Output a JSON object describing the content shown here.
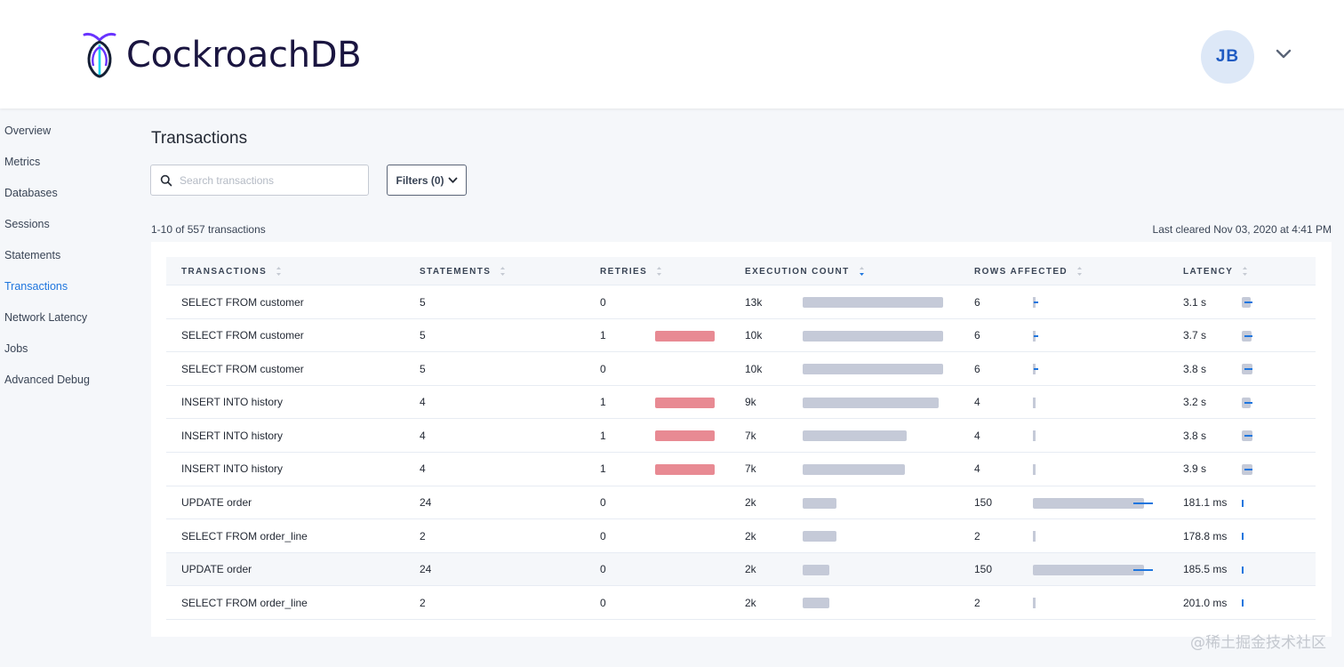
{
  "brand": {
    "name": "CockroachDB",
    "accent": "#1f76de",
    "logo_color": "#6933ff"
  },
  "user": {
    "initials": "JB"
  },
  "sidebar": {
    "items": [
      {
        "label": "Overview",
        "active": false
      },
      {
        "label": "Metrics",
        "active": false
      },
      {
        "label": "Databases",
        "active": false
      },
      {
        "label": "Sessions",
        "active": false
      },
      {
        "label": "Statements",
        "active": false
      },
      {
        "label": "Transactions",
        "active": true
      },
      {
        "label": "Network Latency",
        "active": false
      },
      {
        "label": "Jobs",
        "active": false
      },
      {
        "label": "Advanced Debug",
        "active": false
      }
    ]
  },
  "page": {
    "title": "Transactions",
    "search_placeholder": "Search transactions",
    "filters_label": "Filters (0)",
    "count_label": "1-10 of 557 transactions",
    "cleared_label": "Last cleared Nov 03, 2020 at 4:41 PM"
  },
  "table": {
    "headers": [
      "TRANSACTIONS",
      "STATEMENTS",
      "RETRIES",
      "EXECUTION COUNT",
      "ROWS AFFECTED",
      "LATENCY"
    ],
    "sorted_column": "EXECUTION COUNT",
    "rows": [
      {
        "transaction": "SELECT FROM customer",
        "statements": "5",
        "retries": "0",
        "retries_level": 0,
        "exec_count": "13k",
        "exec_fraction": 1.0,
        "rows_affected": "6",
        "rows_fraction": 0.04,
        "latency": "3.1 s",
        "latency_fraction": 0.8
      },
      {
        "transaction": "SELECT FROM customer",
        "statements": "5",
        "retries": "1",
        "retries_level": 1,
        "exec_count": "10k",
        "exec_fraction": 1.0,
        "rows_affected": "6",
        "rows_fraction": 0.04,
        "latency": "3.7 s",
        "latency_fraction": 0.95
      },
      {
        "transaction": "SELECT FROM customer",
        "statements": "5",
        "retries": "0",
        "retries_level": 0,
        "exec_count": "10k",
        "exec_fraction": 1.0,
        "rows_affected": "6",
        "rows_fraction": 0.04,
        "latency": "3.8 s",
        "latency_fraction": 0.97
      },
      {
        "transaction": "INSERT INTO history",
        "statements": "4",
        "retries": "1",
        "retries_level": 1,
        "exec_count": "9k",
        "exec_fraction": 0.97,
        "rows_affected": "4",
        "rows_fraction": 0.03,
        "latency": "3.2 s",
        "latency_fraction": 0.82
      },
      {
        "transaction": "INSERT INTO history",
        "statements": "4",
        "retries": "1",
        "retries_level": 1,
        "exec_count": "7k",
        "exec_fraction": 0.74,
        "rows_affected": "4",
        "rows_fraction": 0.03,
        "latency": "3.8 s",
        "latency_fraction": 0.97
      },
      {
        "transaction": "INSERT INTO history",
        "statements": "4",
        "retries": "1",
        "retries_level": 1,
        "exec_count": "7k",
        "exec_fraction": 0.73,
        "rows_affected": "4",
        "rows_fraction": 0.03,
        "latency": "3.9 s",
        "latency_fraction": 1.0
      },
      {
        "transaction": "UPDATE order",
        "statements": "24",
        "retries": "0",
        "retries_level": 0,
        "exec_count": "2k",
        "exec_fraction": 0.24,
        "rows_affected": "150",
        "rows_fraction": 1.0,
        "latency": "181.1 ms",
        "latency_fraction": 0.05
      },
      {
        "transaction": "SELECT FROM order_line",
        "statements": "2",
        "retries": "0",
        "retries_level": 0,
        "exec_count": "2k",
        "exec_fraction": 0.24,
        "rows_affected": "2",
        "rows_fraction": 0.01,
        "latency": "178.8 ms",
        "latency_fraction": 0.05
      },
      {
        "transaction": "UPDATE order",
        "statements": "24",
        "retries": "0",
        "retries_level": 0,
        "exec_count": "2k",
        "exec_fraction": 0.19,
        "rows_affected": "150",
        "rows_fraction": 1.0,
        "latency": "185.5 ms",
        "latency_fraction": 0.05
      },
      {
        "transaction": "SELECT FROM order_line",
        "statements": "2",
        "retries": "0",
        "retries_level": 0,
        "exec_count": "2k",
        "exec_fraction": 0.19,
        "rows_affected": "2",
        "rows_fraction": 0.01,
        "latency": "201.0 ms",
        "latency_fraction": 0.05
      }
    ]
  },
  "watermark": "@稀土掘金技术社区",
  "colors": {
    "retry_bar": "#e88a93",
    "grey_bar": "#c5cad8",
    "blue_tick": "#1f76de"
  }
}
